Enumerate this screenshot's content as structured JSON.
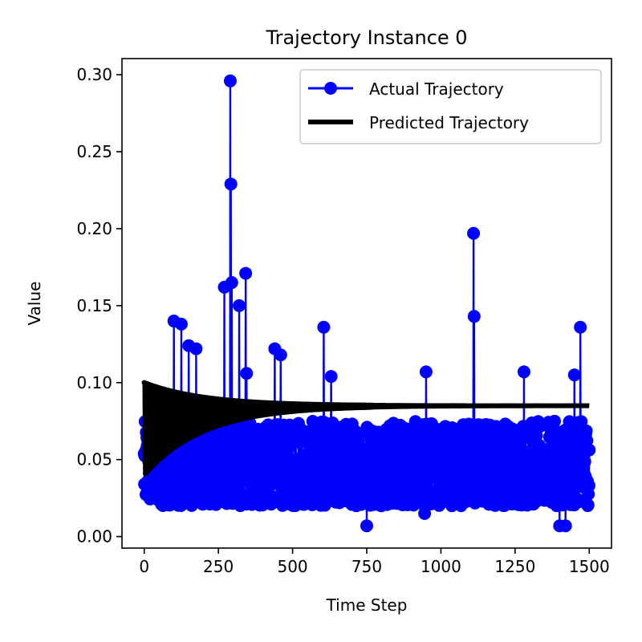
{
  "chart_data": {
    "type": "line",
    "title": "Trajectory Instance 0",
    "xlabel": "Time Step",
    "ylabel": "Value",
    "xlim": [
      -75,
      1575
    ],
    "ylim": [
      -0.0075,
      0.3105
    ],
    "xticks": [
      0,
      250,
      500,
      750,
      1000,
      1250,
      1500
    ],
    "xtick_labels": [
      "0",
      "250",
      "500",
      "750",
      "1000",
      "1250",
      "1500"
    ],
    "yticks": [
      0.0,
      0.05,
      0.1,
      0.15,
      0.2,
      0.25,
      0.3
    ],
    "ytick_labels": [
      "0.00",
      "0.05",
      "0.10",
      "0.15",
      "0.20",
      "0.25",
      "0.30"
    ],
    "grid": false,
    "legend_position": "top-right",
    "series": [
      {
        "name": "Actual Trajectory",
        "color": "#0000ff",
        "style": "line-with-circle-markers",
        "x_start": 0,
        "x_end": 1500,
        "n_points": 1501,
        "typical_range": [
          0.02,
          0.075
        ],
        "spikes": [
          {
            "x": 100,
            "y": 0.14
          },
          {
            "x": 125,
            "y": 0.138
          },
          {
            "x": 150,
            "y": 0.124
          },
          {
            "x": 175,
            "y": 0.122
          },
          {
            "x": 270,
            "y": 0.162
          },
          {
            "x": 290,
            "y": 0.296
          },
          {
            "x": 292,
            "y": 0.229
          },
          {
            "x": 295,
            "y": 0.165
          },
          {
            "x": 320,
            "y": 0.15
          },
          {
            "x": 342,
            "y": 0.171
          },
          {
            "x": 345,
            "y": 0.106
          },
          {
            "x": 440,
            "y": 0.122
          },
          {
            "x": 460,
            "y": 0.118
          },
          {
            "x": 605,
            "y": 0.136
          },
          {
            "x": 630,
            "y": 0.104
          },
          {
            "x": 945,
            "y": 0.104
          },
          {
            "x": 950,
            "y": 0.107
          },
          {
            "x": 1110,
            "y": 0.197
          },
          {
            "x": 1112,
            "y": 0.143
          },
          {
            "x": 1280,
            "y": 0.107
          },
          {
            "x": 1450,
            "y": 0.105
          },
          {
            "x": 1470,
            "y": 0.136
          }
        ],
        "dips": [
          {
            "x": 750,
            "y": 0.007
          },
          {
            "x": 945,
            "y": 0.015
          },
          {
            "x": 1400,
            "y": 0.007
          },
          {
            "x": 1420,
            "y": 0.007
          }
        ]
      },
      {
        "name": "Predicted Trajectory",
        "color": "#000000",
        "style": "thick-line",
        "x_start": 0,
        "x_end": 1500,
        "steady_value": 0.085,
        "initial_oscillation_amplitude": 0.03,
        "settling_steps": 700
      }
    ]
  }
}
